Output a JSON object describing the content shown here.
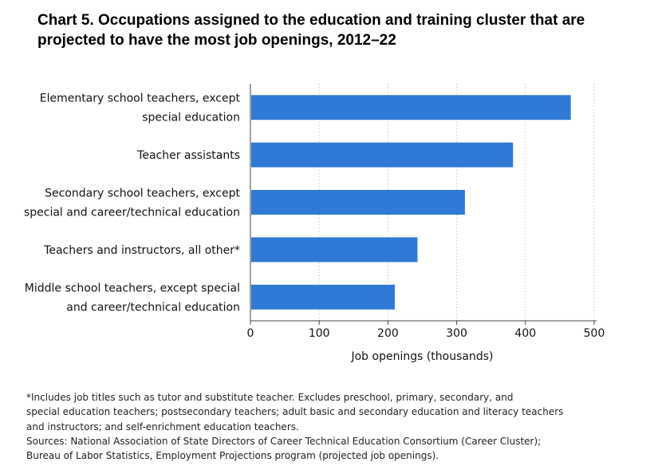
{
  "title_lines": [
    "Chart 5. Occupations assigned to the education and training cluster that are",
    "projected to have the most job openings, 2012–22"
  ],
  "chart_data": {
    "type": "bar",
    "orientation": "horizontal",
    "categories": [
      [
        "Elementary school teachers, except",
        "special education"
      ],
      [
        "Teacher assistants"
      ],
      [
        "Secondary school teachers, except",
        "special and career/technical education"
      ],
      [
        "Teachers and instructors, all other*"
      ],
      [
        "Middle school teachers, except special",
        "and career/technical education"
      ]
    ],
    "values": [
      466,
      382,
      312,
      243,
      210
    ],
    "xlabel": "Job openings (thousands)",
    "ylabel": "",
    "xlim": [
      0,
      500
    ],
    "xticks": [
      0,
      100,
      200,
      300,
      400,
      500
    ],
    "grid": "vertical dotted",
    "bar_color": "#2e7ad6"
  },
  "notes": {
    "lines": [
      "*Includes job titles such as tutor and substitute teacher. Excludes preschool, primary, secondary, and",
      "special education teachers; postsecondary teachers; adult basic and secondary education and literacy teachers",
      "and instructors; and self-enrichment education teachers.",
      "Sources: National Association of State Directors of Career Technical Education Consortium (Career Cluster);",
      "Bureau of Labor Statistics, Employment Projections program (projected job openings)."
    ]
  }
}
